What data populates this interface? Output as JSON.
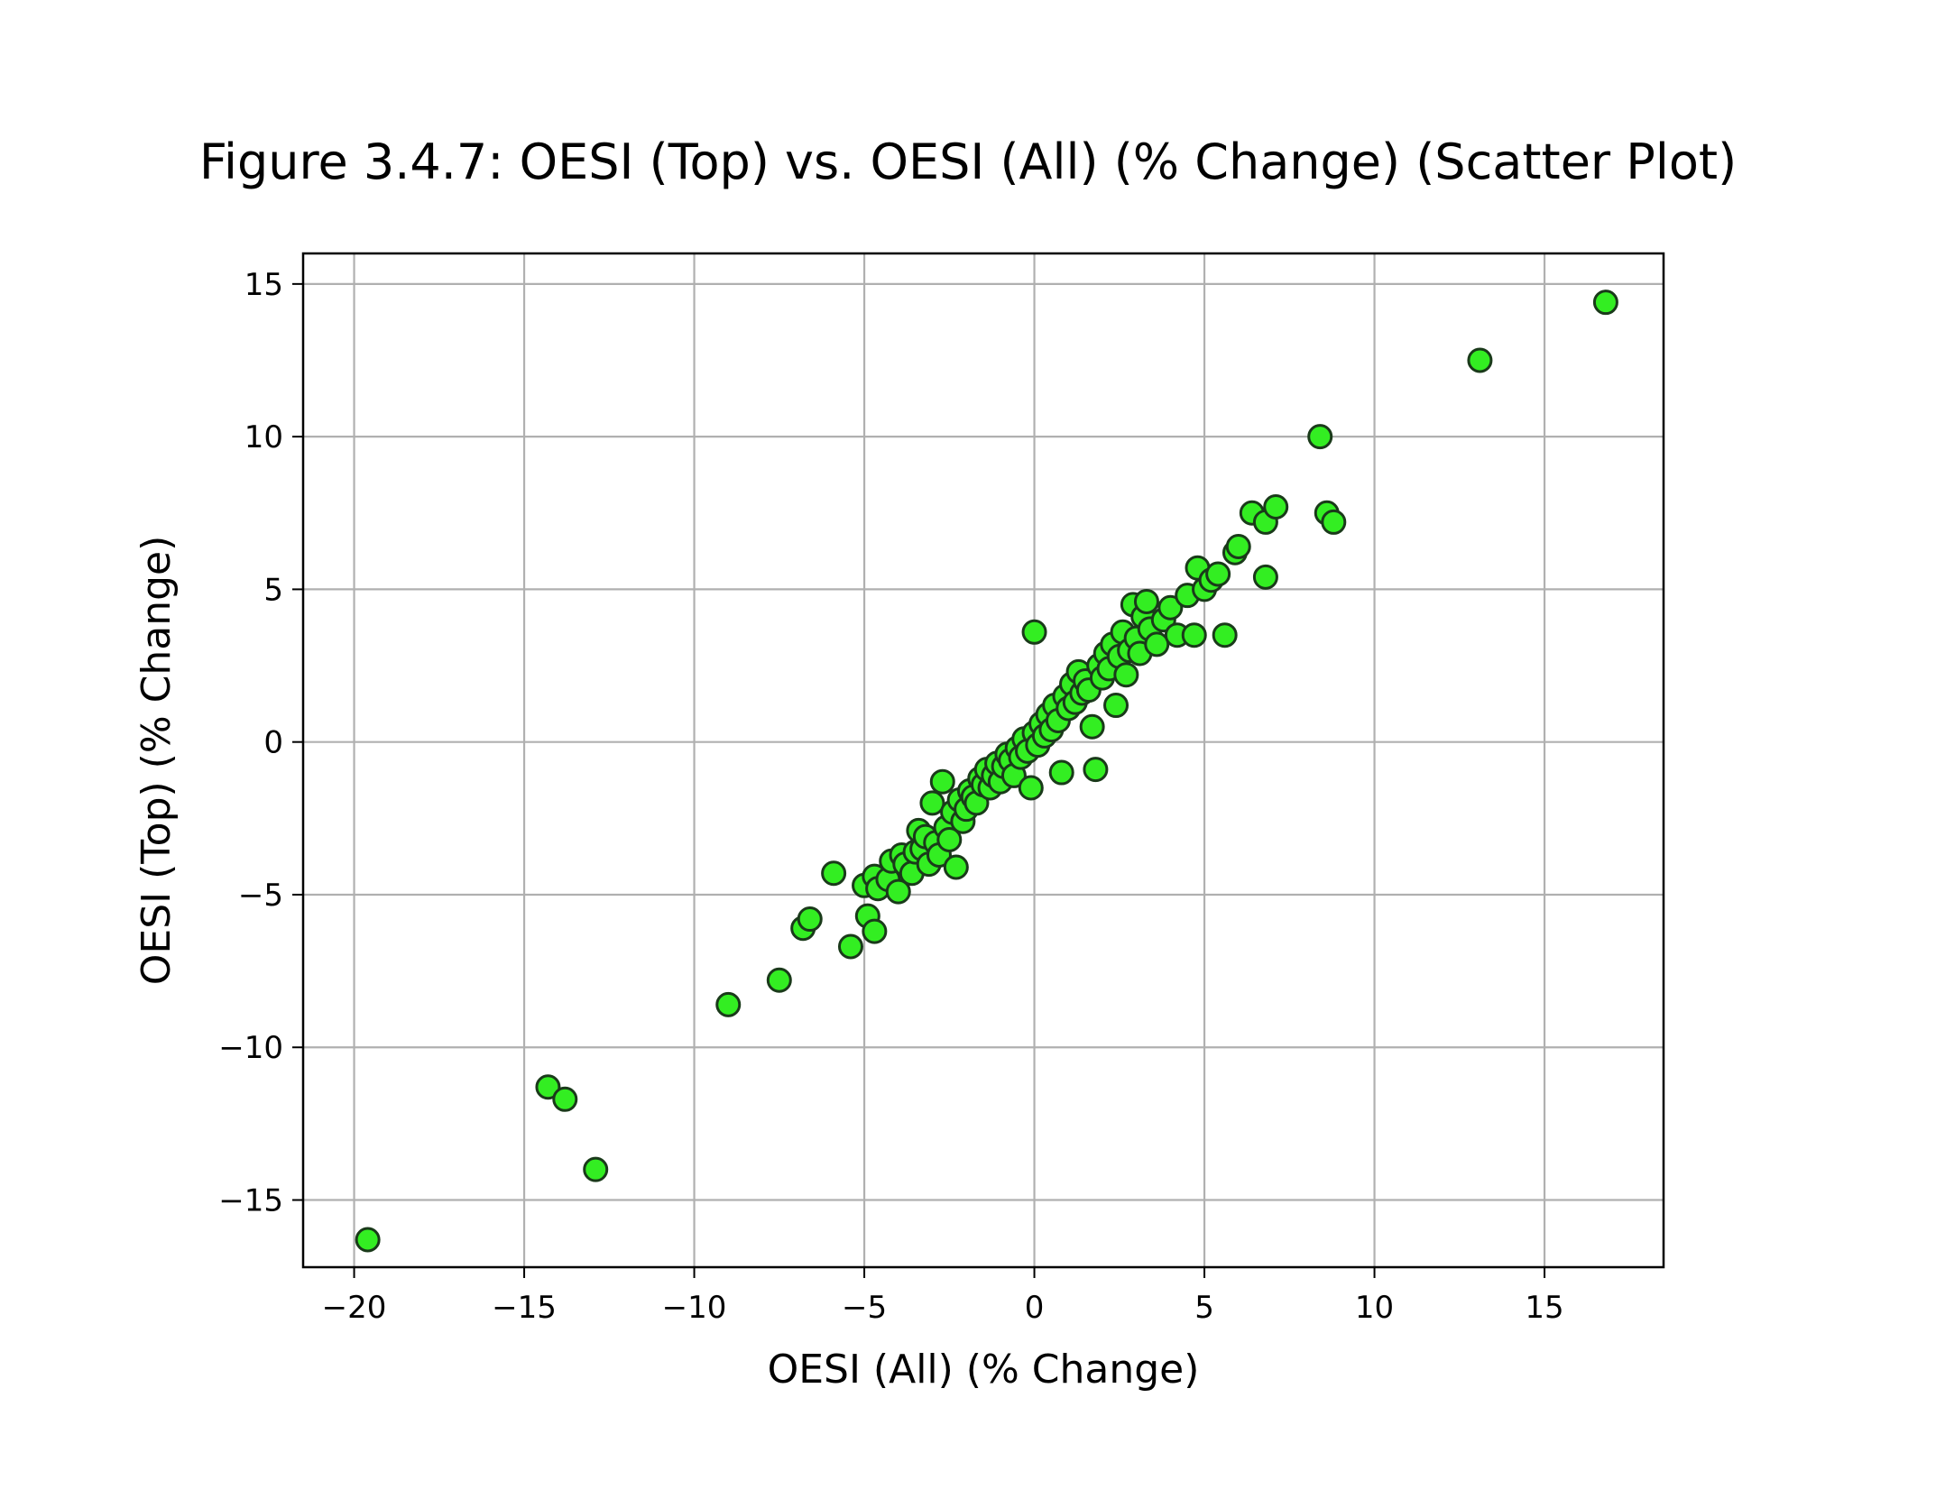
{
  "chart_data": {
    "type": "scatter",
    "title": "Figure 3.4.7: OESI (Top) vs. OESI (All) (% Change) (Scatter Plot)",
    "xlabel": "OESI (All) (% Change)",
    "ylabel": "OESI (Top) (% Change)",
    "xlim": [
      -21.5,
      18.5
    ],
    "ylim": [
      -17.2,
      16.0
    ],
    "xticks": [
      -20,
      -15,
      -10,
      -5,
      0,
      5,
      10,
      15
    ],
    "yticks": [
      -15,
      -10,
      -5,
      0,
      5,
      10,
      15
    ],
    "xtick_labels": [
      "−20",
      "−15",
      "−10",
      "−5",
      "0",
      "5",
      "10",
      "15"
    ],
    "ytick_labels": [
      "−15",
      "−10",
      "−5",
      "0",
      "5",
      "10",
      "15"
    ],
    "grid": true,
    "colors": {
      "marker_fill": "#33ee22",
      "marker_edge": "#1a3a1a",
      "grid": "#b0b0b0"
    },
    "series": [
      {
        "points": [
          [
            -19.6,
            -16.3
          ],
          [
            -14.3,
            -11.3
          ],
          [
            -13.8,
            -11.7
          ],
          [
            -12.9,
            -14.0
          ],
          [
            -9.0,
            -8.6
          ],
          [
            -7.5,
            -7.8
          ],
          [
            -6.8,
            -6.1
          ],
          [
            -6.6,
            -5.8
          ],
          [
            -5.9,
            -4.3
          ],
          [
            -5.4,
            -6.7
          ],
          [
            -5.0,
            -4.7
          ],
          [
            -4.9,
            -5.7
          ],
          [
            -4.7,
            -6.2
          ],
          [
            -4.7,
            -4.4
          ],
          [
            -4.6,
            -4.8
          ],
          [
            -4.3,
            -4.5
          ],
          [
            -4.0,
            -4.9
          ],
          [
            -4.2,
            -3.9
          ],
          [
            -3.9,
            -3.7
          ],
          [
            -3.8,
            -4.0
          ],
          [
            -3.6,
            -4.3
          ],
          [
            -3.5,
            -3.6
          ],
          [
            -3.4,
            -2.9
          ],
          [
            -3.3,
            -3.5
          ],
          [
            -3.2,
            -3.1
          ],
          [
            -3.1,
            -4.0
          ],
          [
            -3.0,
            -2.0
          ],
          [
            -2.9,
            -3.3
          ],
          [
            -2.8,
            -3.7
          ],
          [
            -2.7,
            -1.3
          ],
          [
            -2.6,
            -2.8
          ],
          [
            -2.5,
            -3.2
          ],
          [
            -2.4,
            -2.3
          ],
          [
            -2.3,
            -4.1
          ],
          [
            -2.2,
            -1.9
          ],
          [
            -2.1,
            -2.6
          ],
          [
            -2.0,
            -2.2
          ],
          [
            -1.9,
            -1.6
          ],
          [
            -1.8,
            -1.8
          ],
          [
            -1.7,
            -2.0
          ],
          [
            -1.6,
            -1.2
          ],
          [
            -1.5,
            -1.4
          ],
          [
            -1.4,
            -0.9
          ],
          [
            -1.3,
            -1.5
          ],
          [
            -1.2,
            -1.1
          ],
          [
            -1.1,
            -0.7
          ],
          [
            -1.0,
            -1.3
          ],
          [
            -0.9,
            -0.8
          ],
          [
            -0.8,
            -0.4
          ],
          [
            -0.7,
            -0.6
          ],
          [
            -0.6,
            -1.1
          ],
          [
            -0.5,
            -0.2
          ],
          [
            -0.4,
            -0.5
          ],
          [
            -0.3,
            0.1
          ],
          [
            -0.2,
            -0.3
          ],
          [
            -0.1,
            -1.5
          ],
          [
            0.0,
            3.6
          ],
          [
            0.0,
            0.3
          ],
          [
            0.1,
            -0.1
          ],
          [
            0.2,
            0.6
          ],
          [
            0.3,
            0.2
          ],
          [
            0.4,
            0.9
          ],
          [
            0.5,
            0.4
          ],
          [
            0.6,
            1.2
          ],
          [
            0.7,
            0.7
          ],
          [
            0.8,
            -1.0
          ],
          [
            0.9,
            1.5
          ],
          [
            1.0,
            1.1
          ],
          [
            1.1,
            1.9
          ],
          [
            1.2,
            1.3
          ],
          [
            1.3,
            2.3
          ],
          [
            1.4,
            1.6
          ],
          [
            1.5,
            2.0
          ],
          [
            1.6,
            1.7
          ],
          [
            1.7,
            0.5
          ],
          [
            1.8,
            -0.9
          ],
          [
            1.9,
            2.5
          ],
          [
            2.0,
            2.1
          ],
          [
            2.1,
            2.9
          ],
          [
            2.2,
            2.4
          ],
          [
            2.3,
            3.2
          ],
          [
            2.4,
            1.2
          ],
          [
            2.5,
            2.8
          ],
          [
            2.6,
            3.6
          ],
          [
            2.7,
            2.2
          ],
          [
            2.8,
            3.0
          ],
          [
            2.9,
            4.5
          ],
          [
            3.0,
            3.4
          ],
          [
            3.1,
            2.9
          ],
          [
            3.2,
            4.1
          ],
          [
            3.3,
            4.6
          ],
          [
            3.4,
            3.7
          ],
          [
            3.6,
            3.2
          ],
          [
            3.8,
            4.0
          ],
          [
            4.0,
            4.4
          ],
          [
            4.2,
            3.5
          ],
          [
            4.5,
            4.8
          ],
          [
            4.7,
            3.5
          ],
          [
            4.8,
            5.7
          ],
          [
            5.0,
            5.0
          ],
          [
            5.2,
            5.3
          ],
          [
            5.4,
            5.5
          ],
          [
            5.6,
            3.5
          ],
          [
            5.9,
            6.2
          ],
          [
            6.0,
            6.4
          ],
          [
            6.4,
            7.5
          ],
          [
            6.8,
            5.4
          ],
          [
            6.8,
            7.2
          ],
          [
            7.1,
            7.7
          ],
          [
            8.4,
            10.0
          ],
          [
            8.6,
            7.5
          ],
          [
            8.8,
            7.2
          ],
          [
            13.1,
            12.5
          ],
          [
            16.8,
            14.4
          ]
        ]
      }
    ]
  }
}
